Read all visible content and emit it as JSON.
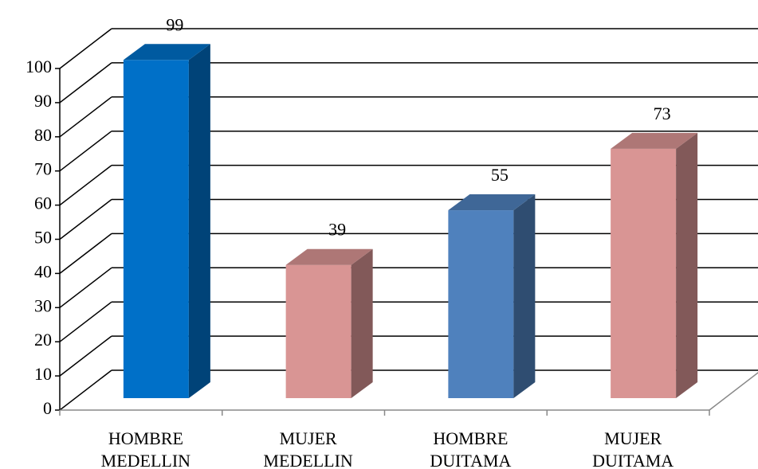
{
  "chart_data": {
    "type": "bar3d",
    "categories": [
      "HOMBRE MEDELLIN",
      "MUJER MEDELLIN",
      "HOMBRE DUITAMA",
      "MUJER DUITAMA"
    ],
    "values": [
      99,
      39,
      55,
      73
    ],
    "colors": [
      "#0070c8",
      "#d99594",
      "#4f81bd",
      "#d99594"
    ],
    "ylim": [
      0,
      100
    ],
    "yticks": [
      0,
      10,
      20,
      30,
      40,
      50,
      60,
      70,
      80,
      90,
      100
    ],
    "grid": true
  }
}
